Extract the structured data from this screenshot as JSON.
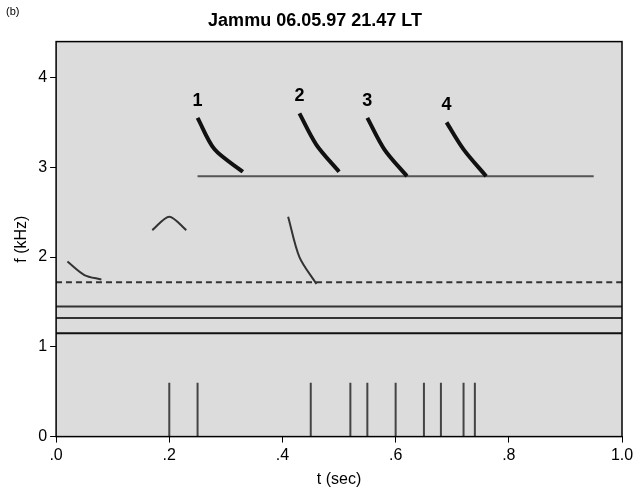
{
  "chart_data": {
    "type": "line",
    "title": "Jammu 06.05.97 21.47 LT",
    "panel": "(b)",
    "x_label": "t (sec)",
    "y_label": "f (kHz)",
    "xlim": [
      0,
      1
    ],
    "ylim": [
      0,
      4.4
    ],
    "xticks": [
      {
        "value": 0,
        "label": ".0"
      },
      {
        "value": 0.2,
        "label": ".2"
      },
      {
        "value": 0.4,
        "label": ".4"
      },
      {
        "value": 0.6,
        "label": ".6"
      },
      {
        "value": 0.8,
        "label": ".8"
      },
      {
        "value": 1,
        "label": "1.0"
      }
    ],
    "yticks": [
      0,
      1,
      2,
      3,
      4
    ],
    "grid": false,
    "series": [
      {
        "name": "1",
        "color": "#111111",
        "line_style": "solid",
        "x": [
          0.25,
          0.28,
          0.33
        ],
        "values": [
          3.55,
          3.2,
          2.95
        ]
      },
      {
        "name": "2",
        "color": "#111111",
        "line_style": "solid",
        "x": [
          0.43,
          0.46,
          0.5
        ],
        "values": [
          3.6,
          3.25,
          2.95
        ]
      },
      {
        "name": "3",
        "color": "#111111",
        "line_style": "solid",
        "x": [
          0.55,
          0.58,
          0.62
        ],
        "values": [
          3.55,
          3.2,
          2.9
        ]
      },
      {
        "name": "4",
        "color": "#111111",
        "line_style": "solid",
        "x": [
          0.69,
          0.72,
          0.76
        ],
        "values": [
          3.5,
          3.2,
          2.9
        ]
      },
      {
        "color": "#555555",
        "line_style": "solid",
        "x": [
          0.25,
          0.95
        ],
        "values": [
          2.9,
          2.9
        ]
      },
      {
        "color": "#333333",
        "line_style": "dashed",
        "x": [
          0,
          1
        ],
        "values": [
          1.72,
          1.72
        ]
      },
      {
        "color": "#333333",
        "line_style": "solid",
        "x": [
          0,
          1
        ],
        "values": [
          1.45,
          1.45
        ]
      },
      {
        "color": "#333333",
        "line_style": "solid",
        "x": [
          0,
          1
        ],
        "values": [
          1.32,
          1.32
        ]
      },
      {
        "color": "#111111",
        "line_style": "solid",
        "x": [
          0,
          1
        ],
        "values": [
          1.15,
          1.15
        ]
      },
      {
        "color": "#333333",
        "line_style": "solid",
        "x": [
          0.02,
          0.05,
          0.08
        ],
        "values": [
          1.95,
          1.8,
          1.75
        ]
      },
      {
        "color": "#333333",
        "line_style": "solid",
        "x": [
          0.17,
          0.2,
          0.23
        ],
        "values": [
          2.3,
          2.45,
          2.3
        ]
      },
      {
        "color": "#333333",
        "line_style": "solid",
        "x": [
          0.41,
          0.43,
          0.46
        ],
        "values": [
          2.45,
          2.0,
          1.7
        ]
      },
      {
        "color": "#444444",
        "line_style": "solid",
        "x": [
          0.2,
          0.2
        ],
        "values": [
          0,
          0.6
        ]
      },
      {
        "color": "#444444",
        "line_style": "solid",
        "x": [
          0.25,
          0.25
        ],
        "values": [
          0,
          0.6
        ]
      },
      {
        "color": "#444444",
        "line_style": "solid",
        "x": [
          0.45,
          0.45
        ],
        "values": [
          0,
          0.6
        ]
      },
      {
        "color": "#444444",
        "line_style": "solid",
        "x": [
          0.52,
          0.52
        ],
        "values": [
          0,
          0.6
        ]
      },
      {
        "color": "#444444",
        "line_style": "solid",
        "x": [
          0.55,
          0.55
        ],
        "values": [
          0,
          0.6
        ]
      },
      {
        "color": "#444444",
        "line_style": "solid",
        "x": [
          0.6,
          0.6
        ],
        "values": [
          0,
          0.6
        ]
      },
      {
        "color": "#444444",
        "line_style": "solid",
        "x": [
          0.65,
          0.65
        ],
        "values": [
          0,
          0.6
        ]
      },
      {
        "color": "#444444",
        "line_style": "solid",
        "x": [
          0.68,
          0.68
        ],
        "values": [
          0,
          0.6
        ]
      },
      {
        "color": "#444444",
        "line_style": "solid",
        "x": [
          0.72,
          0.72
        ],
        "values": [
          0,
          0.6
        ]
      },
      {
        "color": "#444444",
        "line_style": "solid",
        "x": [
          0.74,
          0.74
        ],
        "values": [
          0,
          0.6
        ]
      }
    ]
  }
}
